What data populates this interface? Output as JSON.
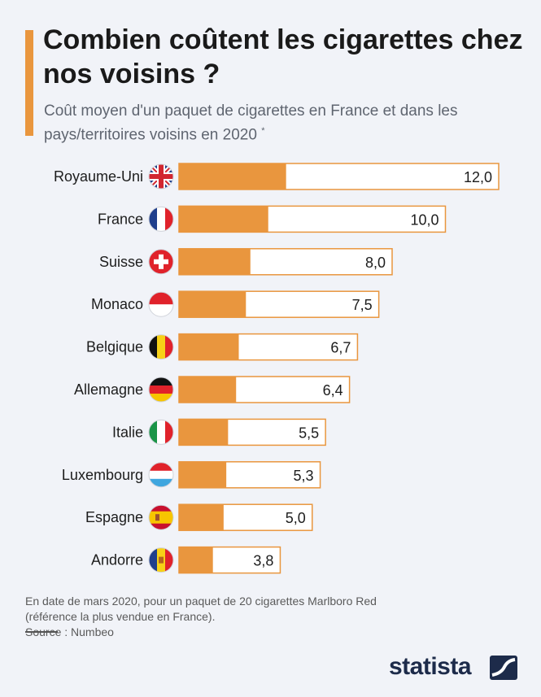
{
  "header": {
    "title": "Combien coûtent les cigarettes chez nos voisins ?",
    "subtitle": "Coût moyen d'un paquet de cigarettes en France et dans les pays/territoires voisins en 2020",
    "subtitle_mark": "*"
  },
  "footer": {
    "note_line1": "En date de mars 2020, pour un paquet de 20 cigarettes Marlboro Red",
    "note_line2": "(référence la plus vendue en France).",
    "source": "Source : Numbeo",
    "brand": "statista"
  },
  "colors": {
    "accent": "#e9963e",
    "background": "#f1f3f8",
    "bar_outline": "#e9963e"
  },
  "chart_data": {
    "type": "bar",
    "orientation": "horizontal",
    "categories": [
      "Royaume-Uni",
      "France",
      "Suisse",
      "Monaco",
      "Belgique",
      "Allemagne",
      "Italie",
      "Luxembourg",
      "Espagne",
      "Andorre"
    ],
    "values": [
      12.0,
      10.0,
      8.0,
      7.5,
      6.7,
      6.4,
      5.5,
      5.3,
      5.0,
      3.8
    ],
    "value_labels": [
      "12,0",
      "10,0",
      "8,0",
      "7,5",
      "6,7",
      "6,4",
      "5,5",
      "5,3",
      "5,0",
      "3,8"
    ],
    "flag_icons": [
      "flag-uk-icon",
      "flag-france-icon",
      "flag-switzerland-icon",
      "flag-monaco-icon",
      "flag-belgium-icon",
      "flag-germany-icon",
      "flag-italy-icon",
      "flag-luxembourg-icon",
      "flag-spain-icon",
      "flag-andorra-icon"
    ],
    "xlim": [
      0,
      12
    ],
    "grid": false,
    "legend": "none"
  }
}
